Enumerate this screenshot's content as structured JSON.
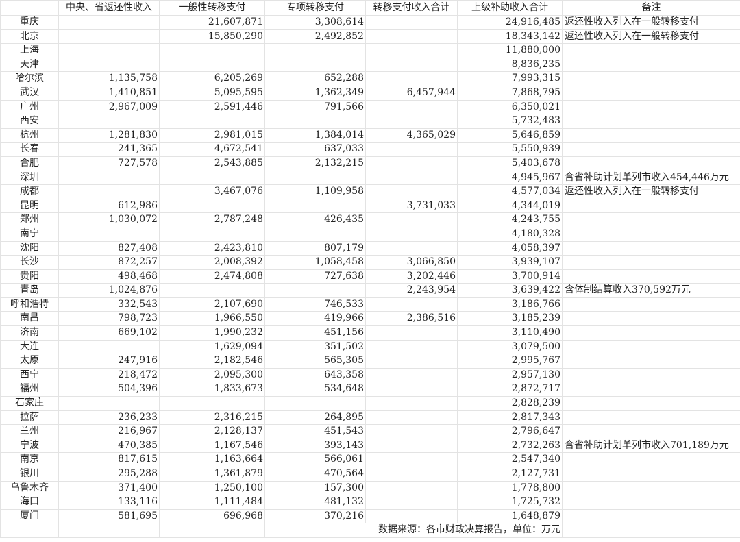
{
  "headers": [
    "",
    "中央、省返还性收入",
    "一般性转移支付",
    "专项转移支付",
    "转移支付收入合计",
    "上级补助收入合计",
    "备注"
  ],
  "rows": [
    [
      "重庆",
      "",
      "21,607,871",
      "3,308,614",
      "",
      "24,916,485",
      "返还性收入列入在一般转移支付"
    ],
    [
      "北京",
      "",
      "15,850,290",
      "2,492,852",
      "",
      "18,343,142",
      "返还性收入列入在一般转移支付"
    ],
    [
      "上海",
      "",
      "",
      "",
      "",
      "11,880,000",
      ""
    ],
    [
      "天津",
      "",
      "",
      "",
      "",
      "8,836,235",
      ""
    ],
    [
      "哈尔滨",
      "1,135,758",
      "6,205,269",
      "652,288",
      "",
      "7,993,315",
      ""
    ],
    [
      "武汉",
      "1,410,851",
      "5,095,595",
      "1,362,349",
      "6,457,944",
      "7,868,795",
      ""
    ],
    [
      "广州",
      "2,967,009",
      "2,591,446",
      "791,566",
      "",
      "6,350,021",
      ""
    ],
    [
      "西安",
      "",
      "",
      "",
      "",
      "5,732,483",
      ""
    ],
    [
      "杭州",
      "1,281,830",
      "2,981,015",
      "1,384,014",
      "4,365,029",
      "5,646,859",
      ""
    ],
    [
      "长春",
      "241,365",
      "4,672,541",
      "637,033",
      "",
      "5,550,939",
      ""
    ],
    [
      "合肥",
      "727,578",
      "2,543,885",
      "2,132,215",
      "",
      "5,403,678",
      ""
    ],
    [
      "深圳",
      "",
      "",
      "",
      "",
      "4,945,967",
      "含省补助计划单列市收入454,446万元"
    ],
    [
      "成都",
      "",
      "3,467,076",
      "1,109,958",
      "",
      "4,577,034",
      "返还性收入列入在一般转移支付"
    ],
    [
      "昆明",
      "612,986",
      "",
      "",
      "3,731,033",
      "4,344,019",
      ""
    ],
    [
      "郑州",
      "1,030,072",
      "2,787,248",
      "426,435",
      "",
      "4,243,755",
      ""
    ],
    [
      "南宁",
      "",
      "",
      "",
      "",
      "4,180,328",
      ""
    ],
    [
      "沈阳",
      "827,408",
      "2,423,810",
      "807,179",
      "",
      "4,058,397",
      ""
    ],
    [
      "长沙",
      "872,257",
      "2,008,392",
      "1,058,458",
      "3,066,850",
      "3,939,107",
      ""
    ],
    [
      "贵阳",
      "498,468",
      "2,474,808",
      "727,638",
      "3,202,446",
      "3,700,914",
      ""
    ],
    [
      "青岛",
      "1,024,876",
      "",
      "",
      "2,243,954",
      "3,639,422",
      "含体制结算收入370,592万元"
    ],
    [
      "呼和浩特",
      "332,543",
      "2,107,690",
      "746,533",
      "",
      "3,186,766",
      ""
    ],
    [
      "南昌",
      "798,723",
      "1,966,550",
      "419,966",
      "2,386,516",
      "3,185,239",
      ""
    ],
    [
      "济南",
      "669,102",
      "1,990,232",
      "451,156",
      "",
      "3,110,490",
      ""
    ],
    [
      "大连",
      "",
      "1,629,094",
      "351,502",
      "",
      "3,079,500",
      ""
    ],
    [
      "太原",
      "247,916",
      "2,182,546",
      "565,305",
      "",
      "2,995,767",
      ""
    ],
    [
      "西宁",
      "218,472",
      "2,095,300",
      "643,358",
      "",
      "2,957,130",
      ""
    ],
    [
      "福州",
      "504,396",
      "1,833,673",
      "534,648",
      "",
      "2,872,717",
      ""
    ],
    [
      "石家庄",
      "",
      "",
      "",
      "",
      "2,828,239",
      ""
    ],
    [
      "拉萨",
      "236,233",
      "2,316,215",
      "264,895",
      "",
      "2,817,343",
      ""
    ],
    [
      "兰州",
      "216,967",
      "2,128,137",
      "451,543",
      "",
      "2,796,647",
      ""
    ],
    [
      "宁波",
      "470,385",
      "1,167,546",
      "393,143",
      "",
      "2,732,263",
      "含省补助计划单列市收入701,189万元"
    ],
    [
      "南京",
      "817,615",
      "1,163,664",
      "566,061",
      "",
      "2,547,340",
      ""
    ],
    [
      "银川",
      "295,288",
      "1,361,879",
      "470,564",
      "",
      "2,127,731",
      ""
    ],
    [
      "乌鲁木齐",
      "371,400",
      "1,250,100",
      "157,300",
      "",
      "1,778,800",
      ""
    ],
    [
      "海口",
      "133,116",
      "1,111,484",
      "481,132",
      "",
      "1,725,732",
      ""
    ],
    [
      "厦门",
      "581,695",
      "696,968",
      "370,216",
      "",
      "1,648,879",
      ""
    ]
  ],
  "footer": {
    "source": "数据来源：各市财政决算报告，单位：万元"
  }
}
